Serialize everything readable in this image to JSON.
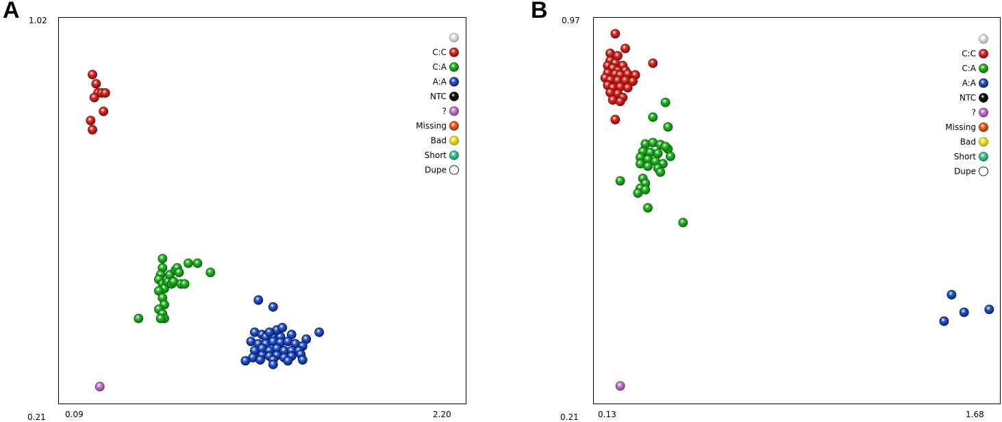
{
  "colors": {
    "C:C": "#d6342b",
    "C:A": "#2fb52f",
    "A:A": "#2a5fc4",
    "NTC": "#111111",
    "?": "#c87fd1",
    "Missing": "#f06a1f",
    "Bad": "#f3e53a",
    "Short": "#4fc8a4",
    "Dupe": "#ffffff",
    "blank": "#e8e8e8"
  },
  "chart_data": [
    {
      "panel": "A",
      "type": "scatter",
      "xlim": [
        0.09,
        2.2
      ],
      "ylim": [
        0.21,
        1.02
      ],
      "x_tick_labels": [
        "0.09",
        "2.20"
      ],
      "y_tick_labels": [
        "0.21",
        "1.02"
      ],
      "legend": [
        "",
        "C:C",
        "C:A",
        "A:A",
        "NTC",
        "?",
        "Missing",
        "Bad",
        "Short",
        "Dupe"
      ],
      "series": [
        {
          "name": "C:C",
          "points": [
            [
              0.22,
              0.91
            ],
            [
              0.24,
              0.89
            ],
            [
              0.25,
              0.87
            ],
            [
              0.23,
              0.86
            ],
            [
              0.27,
              0.87
            ],
            [
              0.29,
              0.87
            ],
            [
              0.28,
              0.83
            ],
            [
              0.21,
              0.81
            ],
            [
              0.22,
              0.79
            ]
          ]
        },
        {
          "name": "C:A",
          "points": [
            [
              0.6,
              0.51
            ],
            [
              0.6,
              0.49
            ],
            [
              0.59,
              0.475
            ],
            [
              0.58,
              0.465
            ],
            [
              0.6,
              0.455
            ],
            [
              0.62,
              0.455
            ],
            [
              0.61,
              0.445
            ],
            [
              0.58,
              0.44
            ],
            [
              0.6,
              0.425
            ],
            [
              0.61,
              0.41
            ],
            [
              0.58,
              0.4
            ],
            [
              0.6,
              0.39
            ],
            [
              0.63,
              0.46
            ],
            [
              0.64,
              0.475
            ],
            [
              0.65,
              0.455
            ],
            [
              0.66,
              0.46
            ],
            [
              0.67,
              0.485
            ],
            [
              0.68,
              0.49
            ],
            [
              0.69,
              0.48
            ],
            [
              0.7,
              0.455
            ],
            [
              0.72,
              0.455
            ],
            [
              0.74,
              0.5
            ],
            [
              0.79,
              0.5
            ],
            [
              0.86,
              0.48
            ],
            [
              0.47,
              0.38
            ],
            [
              0.61,
              0.38
            ],
            [
              0.59,
              0.38
            ]
          ]
        },
        {
          "name": "A:A",
          "points": [
            [
              1.12,
              0.42
            ],
            [
              1.2,
              0.405
            ],
            [
              1.1,
              0.35
            ],
            [
              1.14,
              0.345
            ],
            [
              1.16,
              0.34
            ],
            [
              1.2,
              0.34
            ],
            [
              1.24,
              0.34
            ],
            [
              1.3,
              0.345
            ],
            [
              1.38,
              0.335
            ],
            [
              1.45,
              0.35
            ],
            [
              1.08,
              0.33
            ],
            [
              1.12,
              0.325
            ],
            [
              1.16,
              0.325
            ],
            [
              1.2,
              0.33
            ],
            [
              1.24,
              0.328
            ],
            [
              1.28,
              0.33
            ],
            [
              1.32,
              0.325
            ],
            [
              1.36,
              0.32
            ],
            [
              1.1,
              0.31
            ],
            [
              1.14,
              0.315
            ],
            [
              1.18,
              0.31
            ],
            [
              1.22,
              0.315
            ],
            [
              1.26,
              0.31
            ],
            [
              1.3,
              0.31
            ],
            [
              1.34,
              0.31
            ],
            [
              1.09,
              0.295
            ],
            [
              1.14,
              0.3
            ],
            [
              1.18,
              0.298
            ],
            [
              1.22,
              0.3
            ],
            [
              1.26,
              0.295
            ],
            [
              1.3,
              0.298
            ],
            [
              1.35,
              0.302
            ],
            [
              1.05,
              0.288
            ],
            [
              1.13,
              0.29
            ],
            [
              1.2,
              0.29
            ],
            [
              1.28,
              0.288
            ],
            [
              1.36,
              0.29
            ],
            [
              1.2,
              0.28
            ],
            [
              1.22,
              0.355
            ],
            [
              1.25,
              0.36
            ],
            [
              1.18,
              0.35
            ]
          ]
        },
        {
          "name": "?",
          "points": [
            [
              0.26,
              0.232
            ]
          ]
        }
      ]
    },
    {
      "panel": "B",
      "type": "scatter",
      "xlim": [
        0.13,
        1.68
      ],
      "ylim": [
        0.21,
        0.97
      ],
      "x_tick_labels": [
        "0.13",
        "1.68"
      ],
      "y_tick_labels": [
        "0.21",
        "0.97"
      ],
      "legend": [
        "",
        "C:C",
        "C:A",
        "A:A",
        "NTC",
        "?",
        "Missing",
        "Bad",
        "Short",
        "Dupe"
      ],
      "series": [
        {
          "name": "C:C",
          "points": [
            [
              0.18,
              0.95
            ],
            [
              0.22,
              0.92
            ],
            [
              0.33,
              0.89
            ],
            [
              0.16,
              0.91
            ],
            [
              0.19,
              0.905
            ],
            [
              0.16,
              0.895
            ],
            [
              0.18,
              0.89
            ],
            [
              0.21,
              0.885
            ],
            [
              0.15,
              0.885
            ],
            [
              0.17,
              0.88
            ],
            [
              0.19,
              0.875
            ],
            [
              0.22,
              0.875
            ],
            [
              0.15,
              0.87
            ],
            [
              0.18,
              0.868
            ],
            [
              0.2,
              0.866
            ],
            [
              0.23,
              0.868
            ],
            [
              0.26,
              0.866
            ],
            [
              0.14,
              0.86
            ],
            [
              0.16,
              0.856
            ],
            [
              0.19,
              0.855
            ],
            [
              0.22,
              0.855
            ],
            [
              0.25,
              0.853
            ],
            [
              0.15,
              0.845
            ],
            [
              0.17,
              0.84
            ],
            [
              0.2,
              0.842
            ],
            [
              0.23,
              0.84
            ],
            [
              0.16,
              0.83
            ],
            [
              0.19,
              0.828
            ],
            [
              0.21,
              0.82
            ],
            [
              0.17,
              0.815
            ],
            [
              0.2,
              0.812
            ],
            [
              0.18,
              0.775
            ]
          ]
        },
        {
          "name": "C:A",
          "points": [
            [
              0.38,
              0.81
            ],
            [
              0.33,
              0.78
            ],
            [
              0.39,
              0.76
            ],
            [
              0.3,
              0.725
            ],
            [
              0.33,
              0.728
            ],
            [
              0.36,
              0.724
            ],
            [
              0.39,
              0.715
            ],
            [
              0.29,
              0.71
            ],
            [
              0.32,
              0.708
            ],
            [
              0.35,
              0.706
            ],
            [
              0.38,
              0.72
            ],
            [
              0.4,
              0.7
            ],
            [
              0.28,
              0.698
            ],
            [
              0.31,
              0.694
            ],
            [
              0.34,
              0.69
            ],
            [
              0.37,
              0.685
            ],
            [
              0.28,
              0.685
            ],
            [
              0.31,
              0.68
            ],
            [
              0.35,
              0.676
            ],
            [
              0.36,
              0.668
            ],
            [
              0.29,
              0.655
            ],
            [
              0.3,
              0.645
            ],
            [
              0.28,
              0.635
            ],
            [
              0.2,
              0.65
            ],
            [
              0.27,
              0.625
            ],
            [
              0.31,
              0.595
            ],
            [
              0.45,
              0.565
            ],
            [
              0.3,
              0.632
            ]
          ]
        },
        {
          "name": "A:A",
          "points": [
            [
              1.52,
              0.418
            ],
            [
              1.49,
              0.364
            ],
            [
              1.57,
              0.382
            ],
            [
              1.67,
              0.388
            ]
          ]
        },
        {
          "name": "?",
          "points": [
            [
              0.2,
              0.232
            ]
          ]
        }
      ]
    }
  ]
}
